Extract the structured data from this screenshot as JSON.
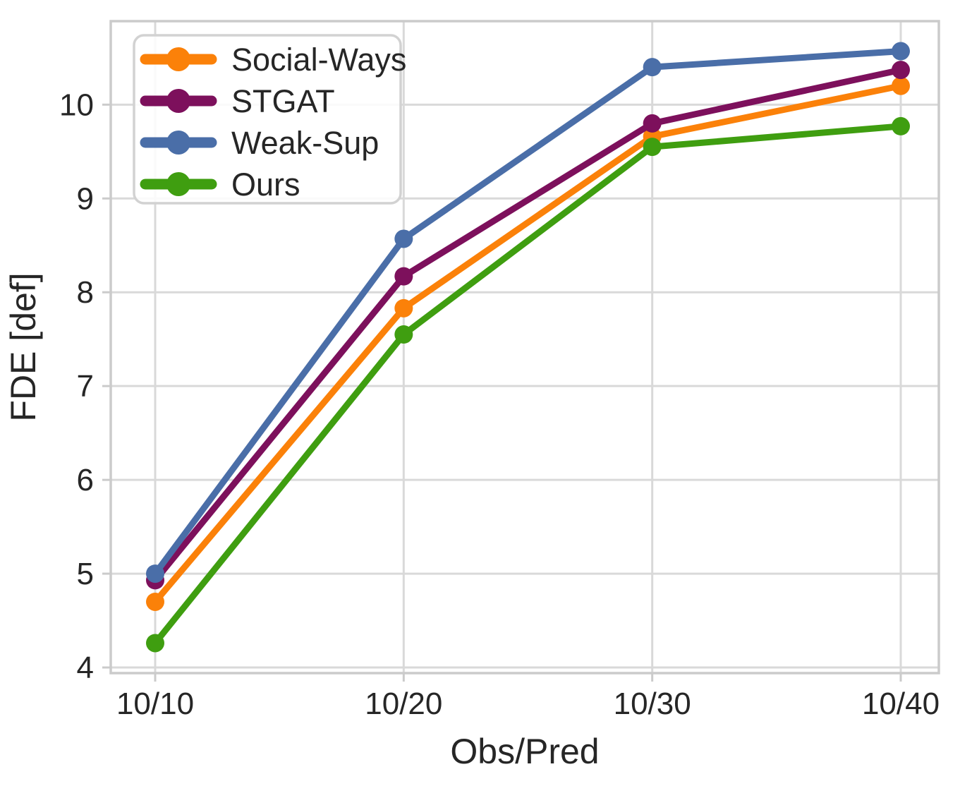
{
  "chart_data": {
    "type": "line",
    "xlabel": "Obs/Pred",
    "ylabel": "FDE [def]",
    "categories": [
      "10/10",
      "10/20",
      "10/30",
      "10/40"
    ],
    "series": [
      {
        "name": "Social-Ways",
        "color": "#FB8109",
        "values": [
          4.7,
          7.83,
          9.66,
          10.2
        ]
      },
      {
        "name": "STGAT",
        "color": "#7D105C",
        "values": [
          4.93,
          8.17,
          9.8,
          10.37
        ]
      },
      {
        "name": "Weak-Sup",
        "color": "#4A6EA8",
        "values": [
          5.0,
          8.57,
          10.4,
          10.57
        ]
      },
      {
        "name": "Ours",
        "color": "#3F9E10",
        "values": [
          4.26,
          7.55,
          9.55,
          9.77
        ]
      }
    ],
    "yticks": [
      4,
      5,
      6,
      7,
      8,
      9,
      10
    ],
    "ylim": [
      3.94,
      10.89
    ],
    "grid": true,
    "legend_position": "upper-left"
  },
  "style": {
    "grid_color": "#d9d9d9",
    "spine_color": "#cbcbcb",
    "tick_color": "#cbcbcb",
    "text_color": "#262626",
    "legend_border_color": "#d2d2d2",
    "background": "#ffffff"
  }
}
